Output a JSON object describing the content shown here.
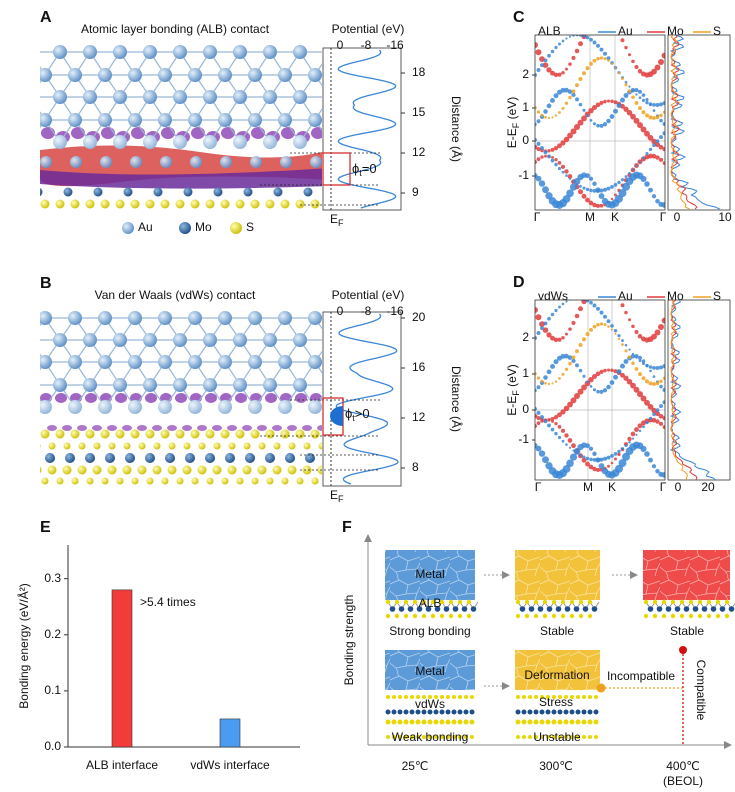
{
  "panels": {
    "A": {
      "panel_label": "A",
      "title": "Atomic layer bonding (ALB) contact",
      "potential_title": "Potential (eV)",
      "potential_ticks": [
        0,
        -8,
        -16
      ],
      "distance_label": "Distance (Å)",
      "distance_ticks": [
        18,
        15,
        12,
        9
      ],
      "barrier": {
        "symbol": "ϕ",
        "subscript": "t",
        "relation": "=0"
      },
      "fermi": {
        "symbol": "E",
        "subscript": "F"
      },
      "legend": [
        "Au",
        "Mo",
        "S"
      ]
    },
    "B": {
      "panel_label": "B",
      "title": "Van der Waals (vdWs) contact",
      "potential_title": "Potential (eV)",
      "potential_ticks": [
        0,
        -8,
        -16
      ],
      "distance_label": "Distance (Å)",
      "distance_ticks": [
        20,
        16,
        12,
        8
      ],
      "barrier": {
        "symbol": "ϕ",
        "subscript": "t",
        "relation": ">0"
      },
      "fermi": {
        "symbol": "E",
        "subscript": "F"
      }
    },
    "C": {
      "panel_label": "C",
      "tag": "ALB",
      "legend": [
        "Au",
        "Mo",
        "S"
      ],
      "y_label": {
        "main": "E-E",
        "subscript": "F",
        "unit": " (eV)"
      },
      "yticks": [
        2,
        1,
        0,
        -1
      ],
      "k_points": [
        "Γ",
        "M",
        "K",
        "Γ"
      ],
      "dos_ticks": [
        0,
        10
      ]
    },
    "D": {
      "panel_label": "D",
      "tag": "vdWs",
      "legend": [
        "Au",
        "Mo",
        "S"
      ],
      "y_label": {
        "main": "E-E",
        "subscript": "F",
        "unit": " (eV)"
      },
      "yticks": [
        2,
        1,
        0,
        -1
      ],
      "k_points": [
        "Γ",
        "M",
        "K",
        "Γ"
      ],
      "dos_ticks": [
        0,
        20
      ]
    },
    "F": {
      "panel_label": "F",
      "y_axis": "Bonding strength",
      "temperatures": [
        "25℃",
        "300℃",
        "400℃"
      ],
      "beol": "(BEOL)",
      "row1": {
        "metal": "Metal",
        "interface": "ALB",
        "states": [
          "Strong bonding",
          "Stable",
          "Stable"
        ]
      },
      "row2": {
        "metal": "Metal",
        "interface": "vdWs",
        "deformation": "Deformation",
        "stress": "Stress",
        "states": [
          "Weak bonding",
          "Unstable"
        ]
      },
      "incompatible": "Incompatible",
      "compatible": "Compatible"
    }
  },
  "chart_data": {
    "type": "bar",
    "panel_label": "E",
    "y_label": "Bonding energy (eV/Å²)",
    "categories": [
      "ALB interface",
      "vdWs interface"
    ],
    "values": [
      0.28,
      0.05
    ],
    "colors": [
      "#f23b3b",
      "#4a9cf0"
    ],
    "annotation": ">5.4 times",
    "ylim": [
      0,
      0.36
    ],
    "yticks": [
      {
        "value": 0,
        "label": "0.0"
      },
      0.1,
      0.2,
      0.3
    ]
  }
}
